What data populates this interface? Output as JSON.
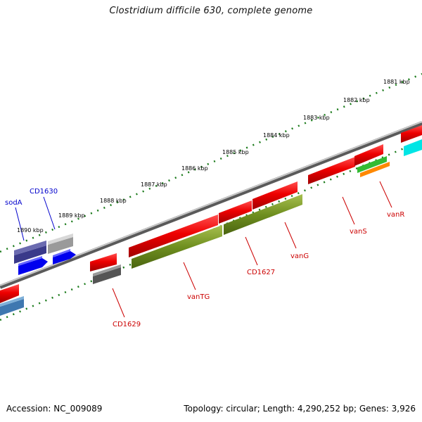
{
  "title": "Clostridium difficile 630, complete genome",
  "footer": {
    "accession": "Accession: NC_009089",
    "topology": "Topology: circular; Length: 4,290,252 bp; Genes: 3,926"
  },
  "ticks": [
    "1881 kbp",
    "1882 kbp",
    "1883 kbp",
    "1884 kbp",
    "1885 kbp",
    "1886 kbp",
    "1887 kbp",
    "1888 kbp",
    "1889 kbp",
    "1890 kbp"
  ],
  "gene_labels": [
    "sodA",
    "CD1630",
    "CD1629",
    "vanTG",
    "CD1627",
    "vanG",
    "vanS",
    "vanR"
  ],
  "colors": {
    "strand_red": "#ee0000",
    "label_red": "#cc0000",
    "label_blue": "#0000cc",
    "olive": "#6f8f1f",
    "tick_green": "#1a7a1a",
    "backbone_gray": "#8a8a8a"
  }
}
